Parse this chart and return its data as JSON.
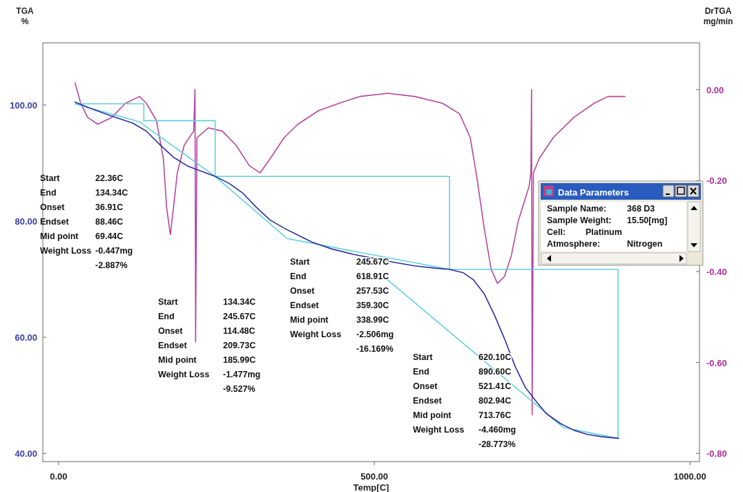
{
  "chart_data": {
    "type": "line",
    "xlabel": "Temp[C]",
    "ylabel": "TGA %",
    "y2label": "DrTGA mg/min",
    "xlim": [
      -25,
      1015
    ],
    "ylim": [
      38.6,
      110.7
    ],
    "y2lim": [
      -0.818,
      0.103
    ],
    "xticks": [
      {
        "value": 0,
        "label": "0.00"
      },
      {
        "value": 500,
        "label": "500.00"
      },
      {
        "value": 1000,
        "label": "1000.00"
      }
    ],
    "yticks": [
      {
        "value": 40,
        "label": "40.00"
      },
      {
        "value": 60,
        "label": "60.00"
      },
      {
        "value": 80,
        "label": "80.00"
      },
      {
        "value": 100,
        "label": "100.00"
      }
    ],
    "y2ticks": [
      {
        "value": -0.8,
        "label": "-0.80"
      },
      {
        "value": -0.6,
        "label": "-0.60"
      },
      {
        "value": -0.4,
        "label": "-0.40"
      },
      {
        "value": -0.2,
        "label": "-0.20"
      },
      {
        "value": 0,
        "label": "0.00"
      }
    ],
    "grid": false,
    "marker": "none",
    "line_style": "solid",
    "series": [
      {
        "color": "#b5469f",
        "axis": "y2",
        "x": [
          26,
          35,
          46,
          62,
          84,
          106,
          128,
          139,
          155,
          166,
          171,
          177,
          182,
          188,
          199,
          214,
          216,
          217,
          219,
          237,
          259,
          281,
          302,
          319,
          335,
          357,
          379,
          412,
          444,
          477,
          521,
          564,
          608,
          635,
          652,
          663,
          674,
          685,
          695,
          706,
          717,
          728,
          745,
          748,
          749,
          750,
          752,
          761,
          783,
          816,
          848,
          870,
          897
        ],
        "values": [
          0.015,
          -0.03,
          -0.061,
          -0.076,
          -0.061,
          -0.03,
          -0.015,
          -0.03,
          -0.068,
          -0.152,
          -0.259,
          -0.319,
          -0.259,
          -0.183,
          -0.122,
          -0.091,
          0,
          -0.555,
          -0.106,
          -0.084,
          -0.091,
          -0.122,
          -0.167,
          -0.183,
          -0.152,
          -0.106,
          -0.076,
          -0.046,
          -0.03,
          -0.015,
          -0.008,
          -0.015,
          -0.03,
          -0.053,
          -0.106,
          -0.198,
          -0.304,
          -0.395,
          -0.426,
          -0.411,
          -0.365,
          -0.289,
          -0.213,
          -0.183,
          0,
          -0.715,
          -0.183,
          -0.152,
          -0.106,
          -0.061,
          -0.03,
          -0.015,
          -0.015
        ]
      },
      {
        "color": "#5fcfe0",
        "x": [
          26,
          135,
          135,
          248,
          248,
          619,
          619,
          886,
          886
        ],
        "values": [
          100.2,
          100.2,
          97.3,
          97.3,
          87.7,
          87.7,
          71.7,
          71.7,
          42.7
        ]
      },
      {
        "color": "#5fcfe0",
        "x": [
          26,
          128,
          248,
          362,
          619
        ],
        "values": [
          100.2,
          97.1,
          87.7,
          77.0,
          71.7
        ]
      },
      {
        "color": "#5fcfe0",
        "x": [
          521,
          799,
          886
        ],
        "values": [
          69.9,
          44.5,
          42.6
        ]
      },
      {
        "color": "#2b2f9e",
        "x": [
          26,
          51,
          84,
          117,
          139,
          161,
          182,
          204,
          226,
          248,
          270,
          292,
          313,
          335,
          357,
          379,
          401,
          433,
          466,
          499,
          532,
          564,
          597,
          619,
          641,
          657,
          674,
          690,
          706,
          723,
          739,
          756,
          772,
          794,
          816,
          837,
          859,
          887
        ],
        "values": [
          100.5,
          99.4,
          98.1,
          96.9,
          95.5,
          93.1,
          91.0,
          89.5,
          88.6,
          87.7,
          86.5,
          84.8,
          82.4,
          80.2,
          78.8,
          77.6,
          76.4,
          75.2,
          74.3,
          73.6,
          72.9,
          72.3,
          71.9,
          71.7,
          71.1,
          69.9,
          67.5,
          63.9,
          59.8,
          55.0,
          51.4,
          49.0,
          46.9,
          45.2,
          44.0,
          43.3,
          42.9,
          42.6
        ]
      }
    ],
    "annotations": [
      "Start\t22.36C",
      "End\t134.34C",
      "Onset\t36.91C",
      "Endset\t88.46C",
      "Mid point\t69.44C",
      "Weight Loss\t-0.447mg",
      "\t-2.887%",
      "Start\t134.34C",
      "End\t245.67C",
      "Onset\t114.48C",
      "Endset\t209.73C",
      "Mid point\t185.99C",
      "Weight Loss\t-1.477mg",
      "\t-9.527%",
      "Start\t245.67C",
      "End\t618.91C",
      "Onset\t257.53C",
      "Endset\t359.30C",
      "Mid point\t338.99C",
      "Weight Loss\t-2.506mg",
      "\t-16.169%",
      "Start\t620.10C",
      "End\t890.60C",
      "Onset\t521.41C",
      "Endset\t802.94C",
      "Mid point\t713.76C",
      "Weight Loss\t-4.460mg",
      "\t-28.773%",
      "Data Parameters",
      "Sample Name:\t368 D3",
      "Sample Weight:\t15.50[mg]",
      "Cell:\tPlatinum",
      "Atmosphere:\tNitrogen"
    ]
  }
}
